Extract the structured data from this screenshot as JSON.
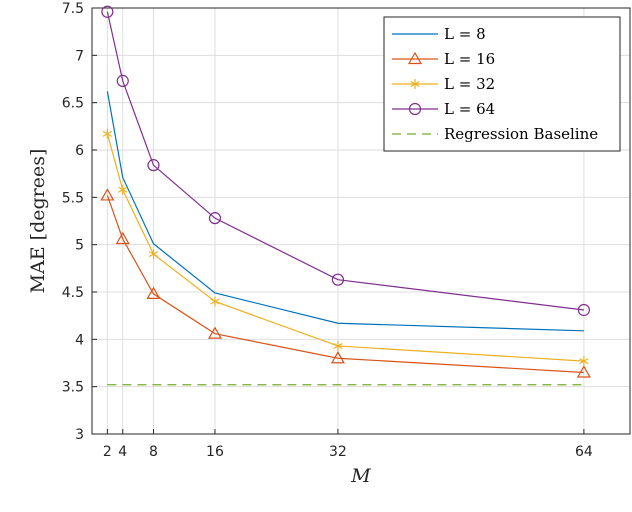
{
  "chart_data": {
    "type": "line",
    "xlabel": "M",
    "ylabel": "MAE [degrees]",
    "x": [
      2,
      4,
      8,
      16,
      32,
      64
    ],
    "xticks": [
      2,
      4,
      8,
      16,
      32,
      64
    ],
    "yticks": [
      "3",
      "3.5",
      "4",
      "4.5",
      "5",
      "5.5",
      "6",
      "6.5",
      "7",
      "7.5"
    ],
    "xlim": [
      0,
      70
    ],
    "ylim": [
      3,
      7.5
    ],
    "grid": true,
    "legend_position": "top-right",
    "series": [
      {
        "name": "L = 8",
        "values": [
          6.62,
          5.71,
          5.01,
          4.49,
          4.17,
          4.09
        ],
        "color": "#0072BD",
        "marker": "none"
      },
      {
        "name": "L = 16",
        "values": [
          5.52,
          5.06,
          4.48,
          4.06,
          3.8,
          3.65
        ],
        "color": "#D95319",
        "marker": "triangle"
      },
      {
        "name": "L = 32",
        "values": [
          6.17,
          5.58,
          4.9,
          4.4,
          3.93,
          3.77
        ],
        "color": "#EDB120",
        "marker": "asterisk"
      },
      {
        "name": "L = 64",
        "values": [
          7.46,
          6.73,
          5.84,
          5.28,
          4.63,
          4.31
        ],
        "color": "#7E2F8E",
        "marker": "circle"
      }
    ],
    "baseline": {
      "name": "Regression Baseline",
      "value": 3.52,
      "color": "#77AC30",
      "style": "dashed"
    }
  }
}
